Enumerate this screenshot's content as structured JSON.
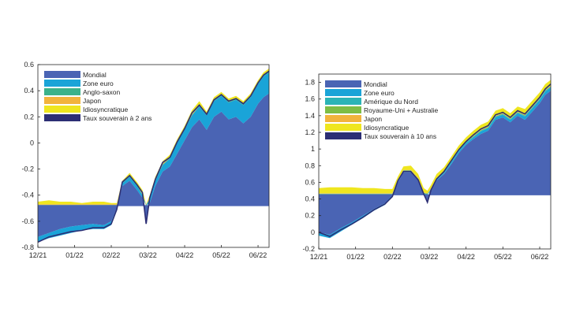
{
  "colors": {
    "mondial": "#4a64b4",
    "zone_euro": "#1aa4d8",
    "anglo_saxon": "#3bb28a",
    "amerique_nord": "#2bb4b6",
    "royaume_uni": "#7ebd45",
    "japon": "#f2b33c",
    "idiosyncratique": "#efe61f",
    "taux": "#2c2e74",
    "grid": "#ffffff",
    "axis": "#262626"
  },
  "chart_data": [
    {
      "type": "area",
      "title": "",
      "xlabel": "",
      "ylabel": "",
      "x_ticks": [
        "12/21",
        "01/22",
        "02/22",
        "03/22",
        "04/22",
        "05/22",
        "06/22"
      ],
      "y_ticks": [
        "-0.8",
        "-0.6",
        "-0.4",
        "-0.2",
        "0",
        "0.2",
        "0.4",
        "0.6"
      ],
      "ylim": [
        -0.8,
        0.6
      ],
      "xlim": [
        0,
        6.3
      ],
      "baseline": -0.48,
      "legend_position": "top-left",
      "x": [
        0,
        0.3,
        0.6,
        0.9,
        1.2,
        1.5,
        1.8,
        2.0,
        2.15,
        2.3,
        2.5,
        2.7,
        2.85,
        2.95,
        3.05,
        3.2,
        3.4,
        3.6,
        3.8,
        4.0,
        4.2,
        4.4,
        4.6,
        4.8,
        5.0,
        5.2,
        5.4,
        5.6,
        5.8,
        6.0,
        6.15,
        6.3
      ],
      "series": [
        {
          "name": "Mondial",
          "color_key": "mondial",
          "values": [
            -0.72,
            -0.69,
            -0.66,
            -0.64,
            -0.63,
            -0.62,
            -0.63,
            -0.6,
            -0.5,
            -0.33,
            -0.29,
            -0.36,
            -0.42,
            -0.6,
            -0.46,
            -0.33,
            -0.22,
            -0.18,
            -0.08,
            0.02,
            0.12,
            0.18,
            0.1,
            0.2,
            0.24,
            0.18,
            0.2,
            0.15,
            0.2,
            0.3,
            0.35,
            0.38
          ]
        },
        {
          "name": "Zone euro",
          "color_key": "zone_euro",
          "values": [
            -0.04,
            -0.04,
            -0.05,
            -0.05,
            -0.04,
            -0.04,
            -0.03,
            -0.03,
            -0.02,
            0.02,
            0.03,
            0.03,
            0.02,
            0.0,
            0.03,
            0.04,
            0.05,
            0.06,
            0.08,
            0.08,
            0.09,
            0.1,
            0.11,
            0.12,
            0.12,
            0.13,
            0.13,
            0.14,
            0.15,
            0.15,
            0.16,
            0.16
          ]
        },
        {
          "name": "Anglo-saxon",
          "color_key": "anglo_saxon",
          "values": [
            0.005,
            0.005,
            0.005,
            0.005,
            0.005,
            0.005,
            0.005,
            0.005,
            0.005,
            0.005,
            0.005,
            0.005,
            0.005,
            0.005,
            0.005,
            0.005,
            0.005,
            0.005,
            0.005,
            0.005,
            0.005,
            0.005,
            0.005,
            0.005,
            0.005,
            0.005,
            0.005,
            0.005,
            0.005,
            0.005,
            0.005,
            0.005
          ]
        },
        {
          "name": "Japon",
          "color_key": "japon",
          "values": [
            0.005,
            0.005,
            0.005,
            0.005,
            0.005,
            0.005,
            0.005,
            0.005,
            0.005,
            0.005,
            0.005,
            0.005,
            0.005,
            0.005,
            0.005,
            0.005,
            0.005,
            0.005,
            0.005,
            0.005,
            0.005,
            0.005,
            0.005,
            0.005,
            0.005,
            0.005,
            0.005,
            0.005,
            0.005,
            0.005,
            0.005,
            0.005
          ]
        },
        {
          "name": "Idiosyncratique",
          "color_key": "idiosyncratique",
          "values": [
            0.02,
            0.03,
            0.02,
            0.02,
            0.01,
            0.02,
            0.02,
            0.01,
            0.01,
            0.01,
            0.02,
            0.02,
            0.03,
            0.0,
            0.02,
            0.02,
            0.02,
            0.02,
            0.02,
            0.02,
            0.03,
            0.03,
            0.02,
            0.02,
            0.02,
            0.02,
            0.02,
            0.02,
            0.02,
            0.02,
            0.02,
            0.02
          ]
        }
      ],
      "line": {
        "name": "Taux souverain à 2 ans",
        "color_key": "taux",
        "values": [
          -0.76,
          -0.72,
          -0.7,
          -0.68,
          -0.67,
          -0.65,
          -0.65,
          -0.62,
          -0.51,
          -0.3,
          -0.25,
          -0.32,
          -0.38,
          -0.62,
          -0.42,
          -0.28,
          -0.15,
          -0.11,
          0.01,
          0.11,
          0.23,
          0.29,
          0.22,
          0.33,
          0.37,
          0.32,
          0.34,
          0.3,
          0.36,
          0.46,
          0.52,
          0.55
        ]
      }
    },
    {
      "type": "area",
      "title": "",
      "xlabel": "",
      "ylabel": "",
      "x_ticks": [
        "12/21",
        "01/22",
        "02/22",
        "03/22",
        "04/22",
        "05/22",
        "06/22"
      ],
      "y_ticks": [
        "-0.2",
        "0",
        "0.2",
        "0.4",
        "0.6",
        "0.8",
        "1",
        "1.2",
        "1.4",
        "1.6",
        "1.8"
      ],
      "ylim": [
        -0.2,
        1.9
      ],
      "xlim": [
        0,
        6.3
      ],
      "baseline": 0.45,
      "legend_position": "top-left",
      "x": [
        0,
        0.3,
        0.6,
        0.9,
        1.2,
        1.5,
        1.8,
        2.0,
        2.15,
        2.3,
        2.5,
        2.7,
        2.85,
        2.95,
        3.05,
        3.2,
        3.4,
        3.6,
        3.8,
        4.0,
        4.2,
        4.4,
        4.6,
        4.8,
        5.0,
        5.2,
        5.4,
        5.6,
        5.8,
        6.0,
        6.15,
        6.3
      ],
      "series": [
        {
          "name": "Mondial",
          "color_key": "mondial",
          "values": [
            0.0,
            -0.03,
            0.05,
            0.12,
            0.2,
            0.28,
            0.35,
            0.42,
            0.6,
            0.72,
            0.72,
            0.62,
            0.45,
            0.38,
            0.5,
            0.62,
            0.7,
            0.82,
            0.95,
            1.05,
            1.12,
            1.18,
            1.22,
            1.35,
            1.38,
            1.32,
            1.4,
            1.35,
            1.45,
            1.55,
            1.65,
            1.7
          ]
        },
        {
          "name": "Zone euro",
          "color_key": "zone_euro",
          "values": [
            -0.04,
            -0.04,
            -0.04,
            -0.03,
            -0.03,
            -0.02,
            -0.02,
            0.0,
            0.01,
            0.01,
            0.01,
            0.01,
            0.01,
            0.0,
            0.01,
            0.01,
            0.01,
            0.02,
            0.02,
            0.02,
            0.02,
            0.03,
            0.03,
            0.03,
            0.03,
            0.03,
            0.03,
            0.04,
            0.04,
            0.04,
            0.04,
            0.04
          ]
        },
        {
          "name": "Amérique du Nord",
          "color_key": "amerique_nord",
          "values": [
            0.01,
            0.01,
            0.01,
            0.01,
            0.01,
            0.01,
            0.01,
            0.01,
            0.01,
            0.01,
            0.01,
            0.01,
            0.01,
            0.01,
            0.01,
            0.01,
            0.01,
            0.01,
            0.01,
            0.01,
            0.01,
            0.01,
            0.01,
            0.01,
            0.01,
            0.01,
            0.01,
            0.01,
            0.01,
            0.01,
            0.01,
            0.01
          ]
        },
        {
          "name": "Royaume-Uni + Australie",
          "color_key": "royaume_uni",
          "values": [
            0.005,
            0.005,
            0.005,
            0.005,
            0.005,
            0.005,
            0.005,
            0.005,
            0.005,
            0.005,
            0.005,
            0.005,
            0.005,
            0.005,
            0.005,
            0.005,
            0.005,
            0.005,
            0.005,
            0.005,
            0.005,
            0.005,
            0.005,
            0.005,
            0.005,
            0.005,
            0.005,
            0.005,
            0.005,
            0.005,
            0.005,
            0.005
          ]
        },
        {
          "name": "Japon",
          "color_key": "japon",
          "values": [
            0.005,
            0.005,
            0.005,
            0.005,
            0.005,
            0.005,
            0.005,
            0.005,
            0.005,
            0.005,
            0.005,
            0.005,
            0.005,
            0.005,
            0.005,
            0.005,
            0.005,
            0.005,
            0.005,
            0.005,
            0.005,
            0.005,
            0.005,
            0.005,
            0.005,
            0.005,
            0.005,
            0.005,
            0.005,
            0.005,
            0.005,
            0.005
          ]
        },
        {
          "name": "Idiosyncratique",
          "color_key": "idiosyncratique",
          "values": [
            0.06,
            0.07,
            0.07,
            0.07,
            0.06,
            0.06,
            0.05,
            0.05,
            0.04,
            0.04,
            0.05,
            0.05,
            0.05,
            0.03,
            0.04,
            0.05,
            0.05,
            0.05,
            0.05,
            0.05,
            0.06,
            0.06,
            0.06,
            0.06,
            0.06,
            0.06,
            0.06,
            0.07,
            0.07,
            0.07,
            0.07,
            0.07
          ]
        }
      ],
      "line": {
        "name": "Taux souverain à 10 ans",
        "color_key": "taux",
        "values": [
          0.0,
          -0.05,
          0.03,
          0.1,
          0.18,
          0.27,
          0.34,
          0.43,
          0.62,
          0.73,
          0.73,
          0.63,
          0.46,
          0.36,
          0.51,
          0.64,
          0.73,
          0.86,
          0.99,
          1.09,
          1.17,
          1.24,
          1.28,
          1.41,
          1.44,
          1.38,
          1.46,
          1.42,
          1.52,
          1.62,
          1.72,
          1.78
        ]
      }
    }
  ]
}
